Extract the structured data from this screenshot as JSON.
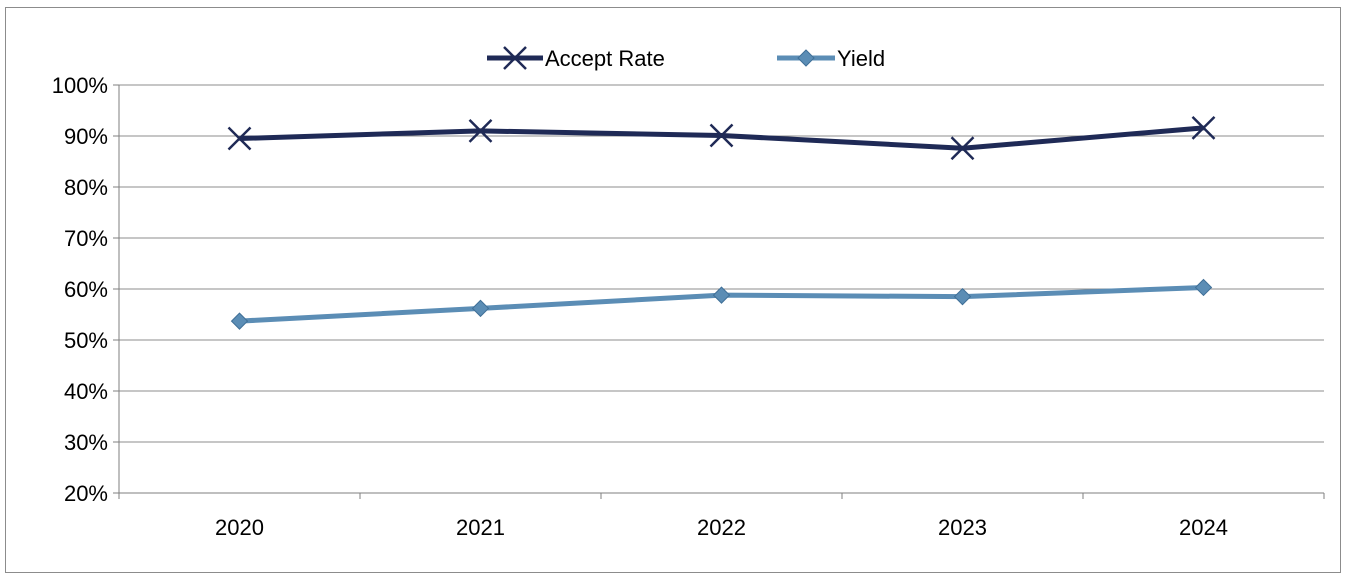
{
  "chart_data": {
    "type": "line",
    "categories": [
      "2020",
      "2021",
      "2022",
      "2023",
      "2024"
    ],
    "series": [
      {
        "name": "Accept Rate",
        "values": [
          89.5,
          91.0,
          90.1,
          87.6,
          91.6
        ],
        "color": "#1f2a56",
        "marker": "x"
      },
      {
        "name": "Yield",
        "values": [
          53.7,
          56.2,
          58.8,
          58.5,
          60.3
        ],
        "color": "#5b8db5",
        "marker": "diamond"
      }
    ],
    "ylim": [
      20,
      100
    ],
    "yticks": [
      "20%",
      "30%",
      "40%",
      "50%",
      "60%",
      "70%",
      "80%",
      "90%",
      "100%"
    ],
    "grid": true,
    "legend_position": "top-center",
    "title": "",
    "xlabel": "",
    "ylabel": ""
  }
}
